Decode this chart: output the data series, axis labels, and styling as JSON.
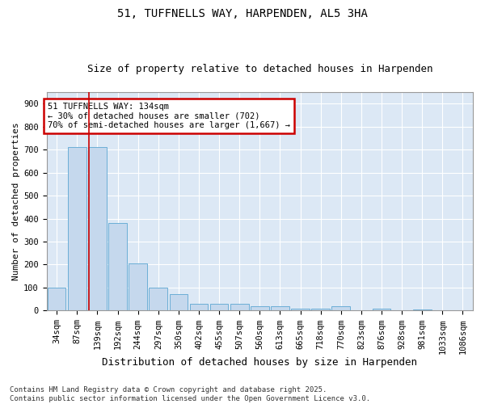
{
  "title1": "51, TUFFNELLS WAY, HARPENDEN, AL5 3HA",
  "title2": "Size of property relative to detached houses in Harpenden",
  "xlabel": "Distribution of detached houses by size in Harpenden",
  "ylabel": "Number of detached properties",
  "categories": [
    "34sqm",
    "87sqm",
    "139sqm",
    "192sqm",
    "244sqm",
    "297sqm",
    "350sqm",
    "402sqm",
    "455sqm",
    "507sqm",
    "560sqm",
    "613sqm",
    "665sqm",
    "718sqm",
    "770sqm",
    "823sqm",
    "876sqm",
    "928sqm",
    "981sqm",
    "1033sqm",
    "1086sqm"
  ],
  "values": [
    100,
    710,
    710,
    380,
    205,
    100,
    70,
    30,
    30,
    30,
    18,
    20,
    10,
    7,
    20,
    3,
    8,
    3,
    5,
    3,
    3
  ],
  "bar_color": "#c5d8ed",
  "bar_edge_color": "#6baed6",
  "vline_x_index": 2,
  "vline_color": "#cc0000",
  "annotation_text": "51 TUFFNELLS WAY: 134sqm\n← 30% of detached houses are smaller (702)\n70% of semi-detached houses are larger (1,667) →",
  "annotation_box_color": "#cc0000",
  "ylim": [
    0,
    950
  ],
  "yticks": [
    0,
    100,
    200,
    300,
    400,
    500,
    600,
    700,
    800,
    900
  ],
  "axes_bg_color": "#dce8f5",
  "grid_color": "#ffffff",
  "fig_bg_color": "#ffffff",
  "footnote1": "Contains HM Land Registry data © Crown copyright and database right 2025.",
  "footnote2": "Contains public sector information licensed under the Open Government Licence v3.0.",
  "title1_fontsize": 10,
  "title2_fontsize": 9,
  "ylabel_fontsize": 8,
  "xlabel_fontsize": 9,
  "tick_fontsize": 7.5,
  "ann_fontsize": 7.5,
  "footnote_fontsize": 6.5
}
